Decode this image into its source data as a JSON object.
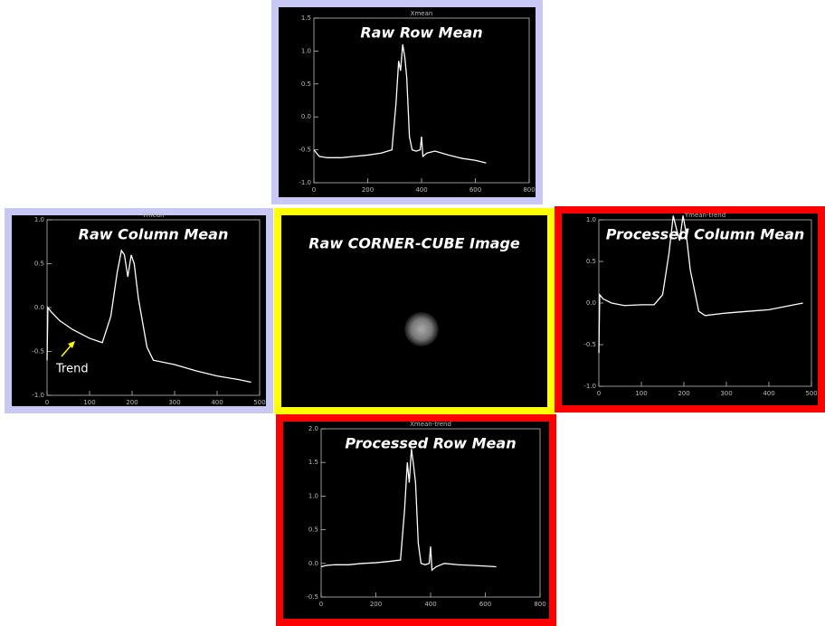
{
  "chart_data": [
    {
      "type": "line",
      "title": "Raw Row Mean",
      "subtitle": "Xmean",
      "frame_color": "#c8c8f4",
      "color": "#ffffff",
      "x": [
        0,
        20,
        50,
        100,
        150,
        200,
        250,
        290,
        305,
        315,
        322,
        330,
        338,
        345,
        355,
        365,
        380,
        395,
        400,
        405,
        420,
        450,
        500,
        550,
        600,
        640
      ],
      "values": [
        -0.5,
        -0.6,
        -0.62,
        -0.62,
        -0.6,
        -0.58,
        -0.55,
        -0.5,
        0.2,
        0.85,
        0.7,
        1.1,
        0.9,
        0.6,
        -0.3,
        -0.5,
        -0.52,
        -0.5,
        -0.3,
        -0.6,
        -0.55,
        -0.52,
        -0.58,
        -0.63,
        -0.66,
        -0.7
      ],
      "xlim": [
        0,
        800
      ],
      "xticks": [
        0,
        200,
        400,
        600,
        800
      ],
      "ylim": [
        -1.0,
        1.5
      ],
      "yticks": [
        {
          "value": -1.0,
          "label": "-1.0"
        },
        -0.5,
        {
          "value": 0.0,
          "label": "0.0"
        },
        0.5,
        {
          "value": 1.0,
          "label": "1.0"
        },
        1.5
      ]
    },
    {
      "type": "line",
      "title": "Raw Column Mean",
      "subtitle": "Ymean",
      "frame_color": "#c8c8f4",
      "color": "#ffffff",
      "x": [
        0,
        2,
        10,
        30,
        60,
        100,
        130,
        150,
        165,
        175,
        182,
        190,
        198,
        205,
        215,
        235,
        250,
        300,
        350,
        400,
        450,
        480
      ],
      "values": [
        -0.6,
        0.0,
        -0.05,
        -0.15,
        -0.25,
        -0.35,
        -0.4,
        -0.1,
        0.4,
        0.65,
        0.6,
        0.35,
        0.6,
        0.5,
        0.1,
        -0.45,
        -0.6,
        -0.65,
        -0.72,
        -0.78,
        -0.82,
        -0.85
      ],
      "xlim": [
        0,
        500
      ],
      "xticks": [
        0,
        100,
        200,
        300,
        400,
        500
      ],
      "ylim": [
        -1.0,
        1.0
      ],
      "yticks": [
        {
          "value": -1.0,
          "label": "-1.0"
        },
        -0.5,
        {
          "value": 0.0,
          "label": "0.0"
        },
        0.5,
        {
          "value": 1.0,
          "label": "1.0"
        }
      ],
      "annotation": "Trend"
    },
    {
      "type": "image",
      "title": "Raw CORNER-CUBE Image",
      "frame_color": "#ffff00"
    },
    {
      "type": "line",
      "title": "Processed Column Mean",
      "subtitle": "Ymean-trend",
      "frame_color": "#ff0000",
      "color": "#ffffff",
      "x": [
        0,
        2,
        10,
        30,
        60,
        100,
        130,
        150,
        165,
        175,
        182,
        190,
        198,
        205,
        215,
        235,
        250,
        300,
        350,
        400,
        450,
        480
      ],
      "values": [
        -0.6,
        0.1,
        0.05,
        0.0,
        -0.03,
        -0.02,
        -0.02,
        0.1,
        0.6,
        1.05,
        0.9,
        0.75,
        1.05,
        0.85,
        0.4,
        -0.1,
        -0.15,
        -0.12,
        -0.1,
        -0.08,
        -0.03,
        0.0
      ],
      "xlim": [
        0,
        500
      ],
      "xticks": [
        0,
        100,
        200,
        300,
        400,
        500
      ],
      "ylim": [
        -1.0,
        1.0
      ],
      "yticks": [
        {
          "value": -1.0,
          "label": "-1.0"
        },
        -0.5,
        {
          "value": 0.0,
          "label": "0.0"
        },
        0.5,
        {
          "value": 1.0,
          "label": "1.0"
        }
      ]
    },
    {
      "type": "line",
      "title": "Processed Row Mean",
      "subtitle": "Xmean-trend",
      "frame_color": "#ff0000",
      "color": "#ffffff",
      "x": [
        0,
        20,
        50,
        100,
        150,
        200,
        250,
        290,
        305,
        315,
        322,
        330,
        338,
        345,
        355,
        365,
        380,
        395,
        400,
        405,
        420,
        450,
        500,
        550,
        600,
        640
      ],
      "values": [
        -0.05,
        -0.03,
        -0.02,
        -0.02,
        0,
        0.01,
        0.03,
        0.05,
        0.8,
        1.5,
        1.2,
        1.7,
        1.45,
        1.2,
        0.3,
        0.0,
        -0.02,
        0.0,
        0.25,
        -0.1,
        -0.05,
        0.0,
        -0.02,
        -0.03,
        -0.04,
        -0.05
      ],
      "xlim": [
        0,
        800
      ],
      "xticks": [
        0,
        200,
        400,
        600,
        800
      ],
      "ylim": [
        -0.5,
        2.0
      ],
      "yticks": [
        -0.5,
        {
          "value": 0.0,
          "label": "0.0"
        },
        0.5,
        {
          "value": 1.0,
          "label": "1.0"
        },
        1.5,
        {
          "value": 2.0,
          "label": "2.0"
        }
      ]
    }
  ]
}
